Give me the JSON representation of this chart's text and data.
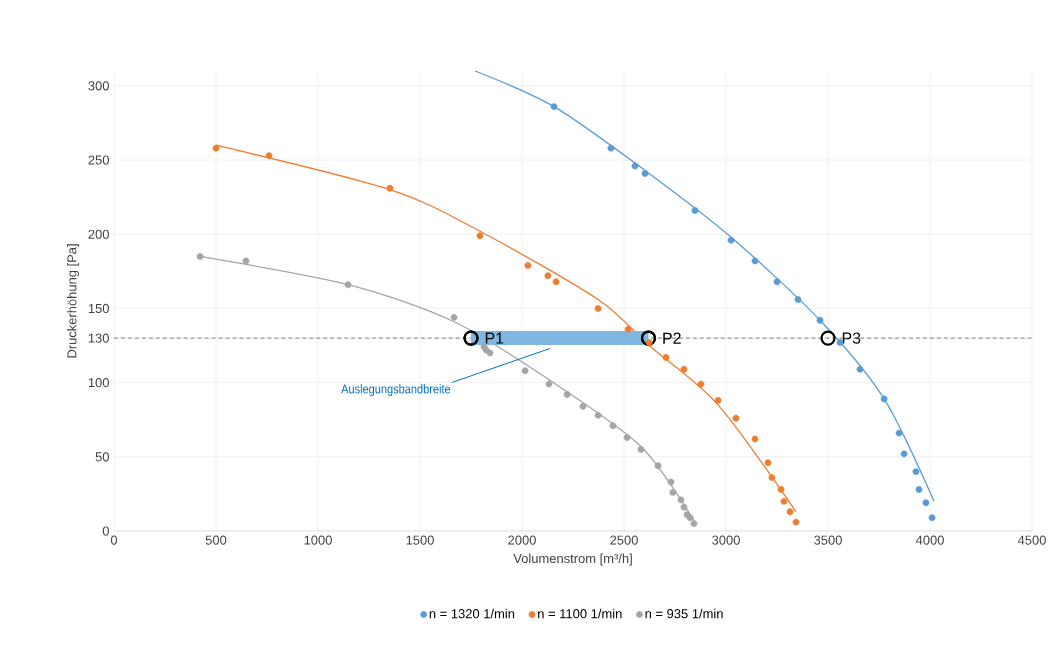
{
  "chart_data": {
    "type": "scatter",
    "xlabel": "Volumenstrom [m³/h]",
    "ylabel": "Druckerhöhung [Pa]",
    "xlim": [
      0,
      4500
    ],
    "ylim": [
      0,
      310
    ],
    "xticks": [
      0,
      500,
      1000,
      1500,
      2000,
      2500,
      3000,
      3500,
      4000,
      4500
    ],
    "yticks": [
      0,
      50,
      100,
      130,
      150,
      200,
      250,
      300
    ],
    "grid": true,
    "legend": "bottom",
    "series": [
      {
        "name": "n = 1320 1/min",
        "marker": "circle",
        "color": "#5b9bd5",
        "x": [
          2157,
          2436,
          2554,
          2603,
          2848,
          3025,
          3142,
          3250,
          3353,
          3461,
          3559,
          3657,
          3775,
          3848,
          3873,
          3931,
          3946,
          3980,
          4010
        ],
        "values": [
          286,
          258,
          246,
          241,
          216,
          196,
          182,
          168,
          156,
          142,
          127,
          109,
          89,
          66,
          52,
          40,
          28,
          19,
          9
        ]
      },
      {
        "name": "n = 1100 1/min",
        "marker": "circle",
        "color": "#ed7d31",
        "x": [
          500,
          760,
          1353,
          1794,
          2029,
          2127,
          2167,
          2373,
          2520,
          2623,
          2706,
          2794,
          2877,
          2961,
          3049,
          3142,
          3206,
          3225,
          3270,
          3284,
          3314,
          3343
        ],
        "values": [
          258,
          253,
          231,
          199,
          179,
          172,
          168,
          150,
          136,
          127,
          117,
          109,
          99,
          88,
          76,
          62,
          46,
          36,
          28,
          20,
          13,
          6
        ]
      },
      {
        "name": "n = 935 1/min",
        "marker": "circle",
        "color": "#a5a5a5",
        "x": [
          422,
          647,
          1147,
          1667,
          1814,
          1824,
          1843,
          2015,
          2132,
          2221,
          2299,
          2373,
          2446,
          2515,
          2583,
          2667,
          2730,
          2740,
          2779,
          2794,
          2809,
          2824,
          2843
        ],
        "values": [
          185,
          182,
          166,
          144,
          124,
          122,
          120,
          108,
          99,
          92,
          84,
          78,
          71,
          63,
          55,
          44,
          33,
          26,
          21,
          16,
          11,
          9,
          5
        ]
      },
      {
        "type": "line",
        "marker": "none",
        "color": "#5b9bd5",
        "x": [
          1770,
          2157,
          2603,
          3025,
          3461,
          3775,
          4020
        ],
        "values": [
          310,
          286,
          243,
          198,
          142,
          89,
          20
        ]
      },
      {
        "type": "line",
        "marker": "none",
        "color": "#ed7d31",
        "x": [
          500,
          1353,
          1794,
          2373,
          2623,
          2961,
          3343
        ],
        "values": [
          260,
          230,
          202,
          156,
          125,
          85,
          13
        ]
      },
      {
        "type": "line",
        "marker": "none",
        "color": "#a5a5a5",
        "x": [
          422,
          1147,
          1667,
          2132,
          2583,
          2843
        ],
        "values": [
          185,
          166,
          141,
          102,
          57,
          7
        ]
      },
      {
        "type": "line",
        "marker": "circle",
        "color": "#7fb7e0",
        "x": [
          1750,
          2620
        ],
        "values": [
          130,
          130
        ]
      }
    ],
    "ref_lines": [
      {
        "axis": "y",
        "value": 130,
        "color": "#7f7f7f",
        "line_style": "dashed"
      }
    ],
    "annotations": [
      {
        "text": "P1",
        "x": 1750,
        "y": 130
      },
      {
        "text": "P2",
        "x": 2620,
        "y": 130
      },
      {
        "text": "P3",
        "x": 3500,
        "y": 130
      },
      {
        "text": "Auslegungsbandbreite",
        "x": 2137,
        "y": 123
      }
    ]
  }
}
